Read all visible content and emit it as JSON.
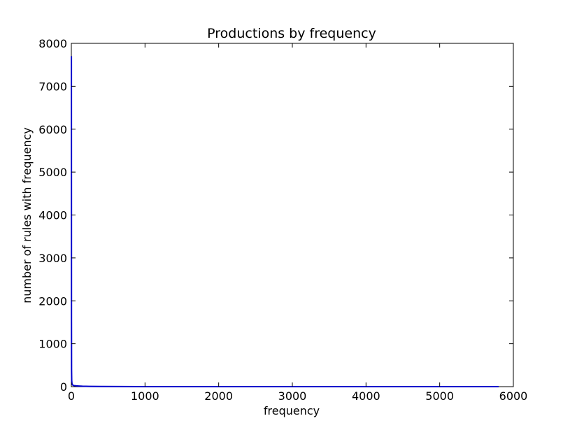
{
  "chart_data": {
    "type": "line",
    "title": "Productions by frequency",
    "xlabel": "frequency",
    "ylabel": "number of rules with frequency",
    "xlim": [
      0,
      6000
    ],
    "ylim": [
      0,
      8000
    ],
    "xticks": [
      0,
      1000,
      2000,
      3000,
      4000,
      5000,
      6000
    ],
    "yticks": [
      0,
      1000,
      2000,
      3000,
      4000,
      5000,
      6000,
      7000,
      8000
    ],
    "xtick_labels": [
      "0",
      "1000",
      "2000",
      "3000",
      "4000",
      "5000",
      "6000"
    ],
    "ytick_labels": [
      "0",
      "1000",
      "2000",
      "3000",
      "4000",
      "5000",
      "6000",
      "7000",
      "8000"
    ],
    "grid": false,
    "series": [
      {
        "color": "#0000cc",
        "x": [
          1,
          2,
          3,
          5,
          8,
          12,
          20,
          35,
          60,
          100,
          150,
          250,
          400,
          700,
          1000,
          2000,
          3000,
          4000,
          5000,
          5800
        ],
        "y": [
          7700,
          1500,
          400,
          150,
          80,
          50,
          35,
          25,
          20,
          15,
          10,
          6,
          4,
          2,
          1,
          1,
          1,
          1,
          1,
          1
        ]
      }
    ]
  }
}
